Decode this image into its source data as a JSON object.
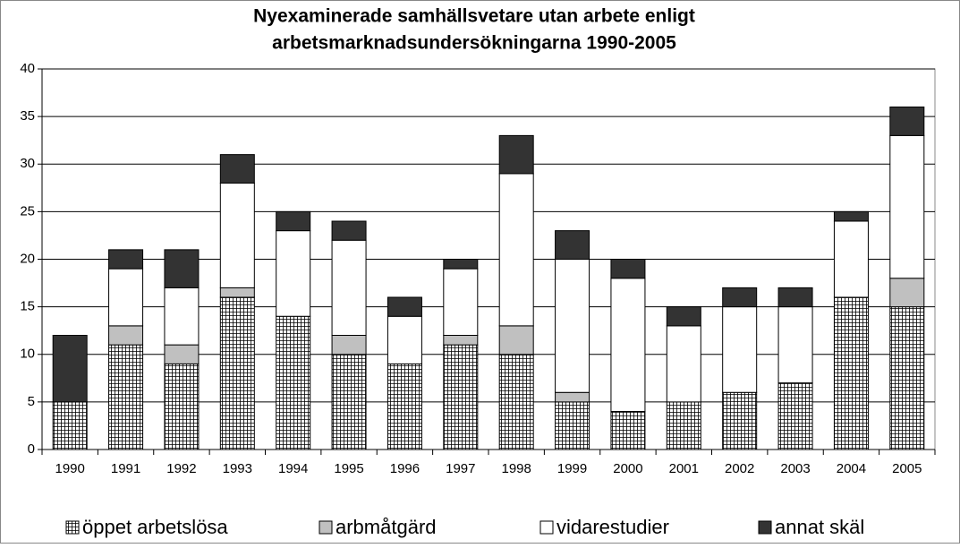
{
  "chart_data": {
    "type": "bar",
    "stacked": true,
    "title": "Nyexaminerade samhällsvetare utan arbete enligt arbetsmarknadsundersökningarna 1990-2005",
    "categories": [
      "1990",
      "1991",
      "1992",
      "1993",
      "1994",
      "1995",
      "1996",
      "1997",
      "1998",
      "1999",
      "2000",
      "2001",
      "2002",
      "2003",
      "2004",
      "2005"
    ],
    "series": [
      {
        "name": "öppet arbetslösa",
        "color": "#ffffff",
        "pattern": "grid",
        "values": [
          5,
          11,
          9,
          16,
          14,
          10,
          9,
          11,
          10,
          5,
          4,
          5,
          6,
          7,
          16,
          15
        ]
      },
      {
        "name": "arbmåtgärd",
        "color": "#c0c0c0",
        "values": [
          0,
          2,
          2,
          1,
          0,
          2,
          0,
          1,
          3,
          1,
          0,
          0,
          0,
          0,
          0,
          3
        ]
      },
      {
        "name": "vidarestudier",
        "color": "#ffffff",
        "values": [
          0,
          6,
          6,
          11,
          9,
          10,
          5,
          7,
          16,
          14,
          14,
          8,
          9,
          8,
          8,
          15
        ]
      },
      {
        "name": "annat skäl",
        "color": "#333333",
        "values": [
          7,
          2,
          4,
          3,
          2,
          2,
          2,
          1,
          4,
          3,
          2,
          2,
          2,
          2,
          1,
          3
        ]
      }
    ],
    "ylim": [
      0,
      40
    ],
    "yticks": [
      0,
      5,
      10,
      15,
      20,
      25,
      30,
      35,
      40
    ],
    "grid": true,
    "legend": "bottom"
  }
}
